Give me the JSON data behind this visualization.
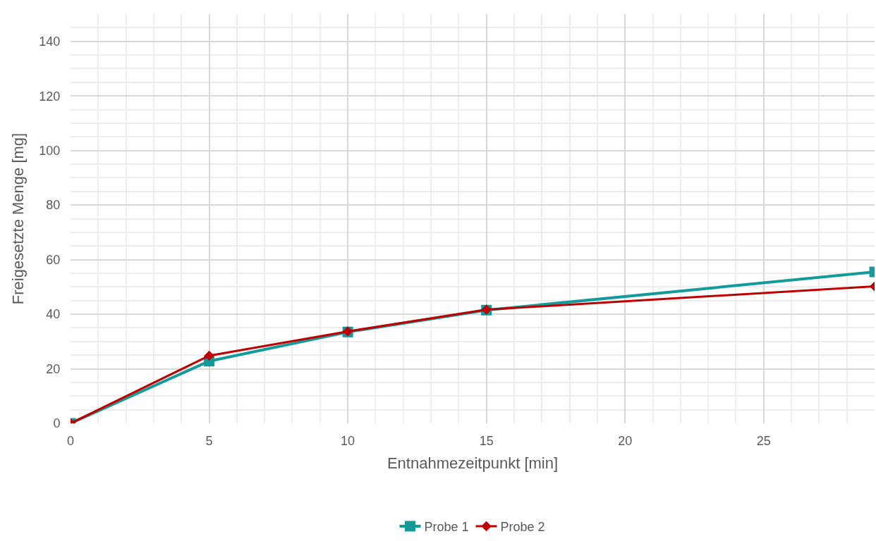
{
  "chart_data": {
    "type": "line",
    "xlabel": "Entnahmezeitpunkt [min]",
    "ylabel": "Freigesetzte Menge [mg]",
    "xlim": [
      0,
      29
    ],
    "xticks": [
      0,
      5,
      10,
      15,
      20,
      25
    ],
    "ylim": [
      0,
      150
    ],
    "yticks": [
      0,
      20,
      40,
      60,
      80,
      100,
      120,
      140
    ],
    "grid": true,
    "legend": "bottom",
    "line_style": "solid",
    "series": [
      {
        "name": "Probe 1",
        "color": "#139a9a",
        "marker": "square",
        "x": [
          0,
          5,
          10,
          15,
          29
        ],
        "values": [
          0,
          22.8,
          33.5,
          41.5,
          55.5
        ]
      },
      {
        "name": "Probe 2",
        "color": "#c00000",
        "marker": "diamond",
        "x": [
          0,
          5,
          10,
          15,
          29
        ],
        "values": [
          0,
          24.8,
          33.7,
          41.7,
          50.2
        ]
      }
    ]
  }
}
